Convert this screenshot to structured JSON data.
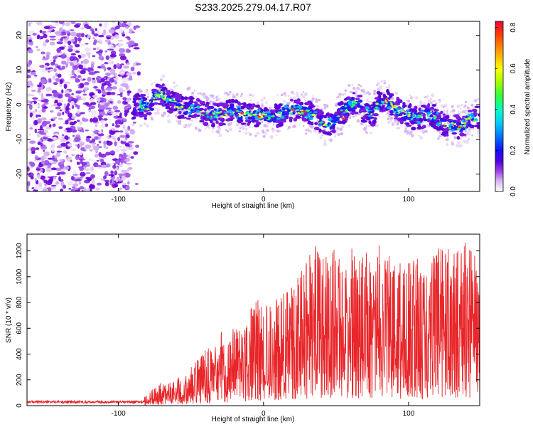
{
  "title": "S233.2025.279.04.17.R07",
  "chart_data": [
    {
      "type": "heatmap",
      "title": "",
      "xlabel": "Height of straight line (km)",
      "ylabel": "Frequency (Hz)",
      "xlim": [
        -163,
        149
      ],
      "ylim": [
        -25,
        24
      ],
      "xticks": [
        -100,
        0,
        100
      ],
      "yticks": [
        -20,
        -10,
        0,
        10,
        20
      ],
      "xtick_labels": [
        "-100",
        "0",
        "100"
      ],
      "ytick_labels": [
        "-20",
        "-10",
        "0",
        "10",
        "20"
      ],
      "noise_region_x": [
        -163,
        -85
      ],
      "signal_start_x": -90,
      "signal_center_freq": {
        "x": [
          -90,
          -85,
          -80,
          -75,
          -70,
          -65,
          -60,
          -55,
          -50,
          -45,
          -40,
          -35,
          -30,
          -25,
          -20,
          -15,
          -10,
          -5,
          0,
          5,
          10,
          15,
          20,
          25,
          30,
          35,
          40,
          45,
          50,
          55,
          60,
          65,
          70,
          75,
          80,
          85,
          90,
          95,
          100,
          105,
          110,
          115,
          120,
          125,
          130,
          135,
          140,
          145,
          149
        ],
        "y": [
          -1,
          0,
          -1,
          2,
          3,
          1,
          0,
          -1,
          -1,
          -1.5,
          -2.5,
          -3,
          -3,
          -2,
          -2,
          -2.5,
          -3,
          -3,
          -3.5,
          -3.5,
          -3,
          -2,
          -1.5,
          -2,
          -2.5,
          -3,
          -5,
          -6,
          -4,
          -2,
          0,
          0.5,
          -2,
          -3,
          1,
          1.5,
          -1,
          -2,
          -3,
          -4,
          -3.5,
          -2.5,
          -4,
          -6,
          -6,
          -6.5,
          -5,
          -4,
          -3.5
        ]
      },
      "colorbar": {
        "label": "Normalized spectral amplitude",
        "range": [
          0,
          0.83
        ],
        "ticks": [
          0.0,
          0.2,
          0.4,
          0.6,
          0.8
        ],
        "tick_labels": [
          "0.0",
          "0.2",
          "0.4",
          "0.6",
          "0.8"
        ],
        "colors": [
          "#ffffff",
          "#e2c8f2",
          "#a15ee6",
          "#6a00d8",
          "#2a00f0",
          "#0060ff",
          "#00c0ff",
          "#00ffc0",
          "#30ff30",
          "#a0ff00",
          "#ffff00",
          "#ffb000",
          "#ff5000",
          "#ff0030"
        ]
      }
    },
    {
      "type": "line",
      "title": "",
      "xlabel": "Height of straight line (km)",
      "ylabel": "SNR (10 * v/v)",
      "xlim": [
        -163,
        149
      ],
      "ylim": [
        0,
        1330
      ],
      "xticks": [
        -100,
        0,
        100
      ],
      "yticks": [
        0,
        200,
        400,
        600,
        800,
        1000,
        1200
      ],
      "xtick_labels": [
        "-100",
        "0",
        "100"
      ],
      "ytick_labels": [
        "0",
        "200",
        "400",
        "600",
        "800",
        "1000",
        "1200"
      ],
      "color": "#e8262a",
      "envelope": {
        "x": [
          -163,
          -120,
          -90,
          -85,
          -80,
          -75,
          -70,
          -65,
          -60,
          -55,
          -50,
          -45,
          -40,
          -35,
          -30,
          -25,
          -20,
          -15,
          -10,
          -5,
          0,
          5,
          10,
          15,
          20,
          25,
          30,
          35,
          40,
          45,
          50,
          55,
          60,
          65,
          70,
          75,
          80,
          85,
          90,
          95,
          100,
          105,
          110,
          115,
          120,
          125,
          130,
          135,
          140,
          145,
          149
        ],
        "y": [
          30,
          30,
          30,
          35,
          100,
          140,
          200,
          170,
          210,
          230,
          300,
          360,
          460,
          430,
          600,
          480,
          620,
          580,
          750,
          820,
          840,
          760,
          850,
          880,
          980,
          1050,
          1130,
          1270,
          1150,
          1180,
          1220,
          1100,
          1250,
          1100,
          1230,
          1180,
          1260,
          1150,
          1180,
          1100,
          1190,
          1200,
          1000,
          1120,
          1300,
          1200,
          1330,
          1220,
          1270,
          1200,
          920
        ]
      }
    }
  ]
}
